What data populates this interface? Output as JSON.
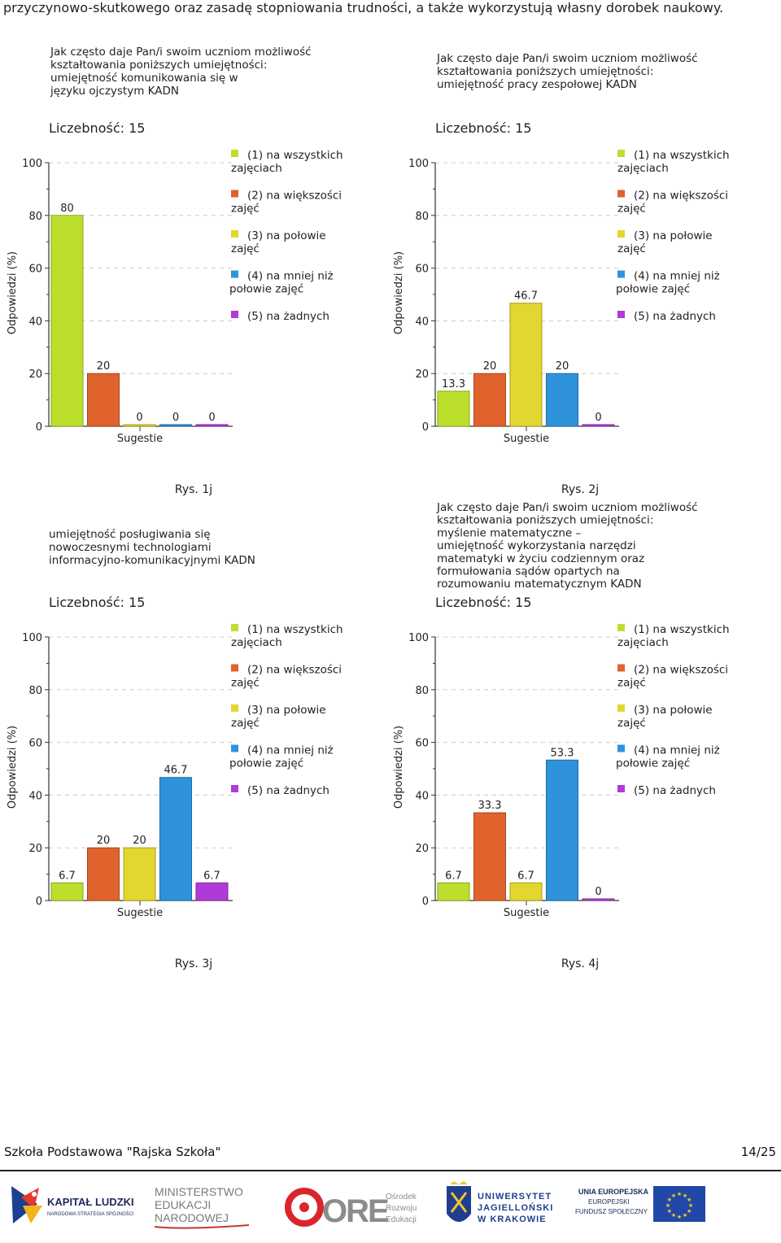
{
  "page": {
    "top_text": "przyczynowo-skutkowego oraz zasadę stopniowania trudności, a także wykorzystują własny dorobek naukowy.",
    "footer_left": "Szkoła Podstawowa \"Rajska Szkoła\"",
    "footer_right": "14/25"
  },
  "legend": {
    "items": [
      {
        "lines": [
          "(1) na wszystkich",
          "zajęciach"
        ],
        "color": "#bcdf2e"
      },
      {
        "lines": [
          "(2) na większości",
          "zajęć"
        ],
        "color": "#e0622c"
      },
      {
        "lines": [
          "(3) na połowie",
          "zajęć"
        ],
        "color": "#e2d630"
      },
      {
        "lines": [
          "(4) na mniej niż",
          "połowie zajęć"
        ],
        "color": "#2f93db"
      },
      {
        "lines": [
          "(5) na żadnych"
        ],
        "color": "#b03ad8"
      }
    ]
  },
  "colors": {
    "bar_colors": [
      "#bcdf2e",
      "#e0622c",
      "#e2d630",
      "#2f93db",
      "#b03ad8"
    ],
    "bar_stroke": [
      "#8aa61c",
      "#a8441a",
      "#a89e18",
      "#1d6aa3",
      "#7d2a9c"
    ],
    "grid": "#cccccc",
    "axis": "#333333",
    "text": "#222222"
  },
  "logos": {
    "kapital": [
      "KAPITAŁ LUDZKI",
      "NARODOWA STRATEGIA SPÓJNOŚCI"
    ],
    "ministerstwo": [
      "MINISTERSTWO",
      "EDUKACJI",
      "NARODOWEJ"
    ],
    "ore_mark": "ORE",
    "ore_text": [
      "Ośrodek",
      "Rozwoju",
      "Edukacji"
    ],
    "uj": [
      "UNIWERSYTET",
      "JAGIELLOŃSKI",
      "W KRAKOWIE"
    ],
    "ue": [
      "UNIA EUROPEJSKA",
      "EUROPEJSKI",
      "FUNDUSZ SPOŁECZNY"
    ]
  },
  "chart_data": [
    {
      "type": "bar",
      "title_lines": [
        "Jak często daje Pan/i swoim uczniom możliwość",
        "kształtowania poniższych umiejętności:",
        "umiejętność komunikowania się w",
        "języku ojczystym KADN"
      ],
      "count_label": "Liczebność: 15",
      "ylabel": "Odpowiedzi (%)",
      "xlabel": "Sugestie",
      "ylim": [
        0,
        100
      ],
      "yticks": [
        0,
        20,
        40,
        60,
        80,
        100
      ],
      "categories": [
        "(1) na wszystkich zajęciach",
        "(2) na większości zajęć",
        "(3) na połowie zajęć",
        "(4) na mniej niż połowie zajęć",
        "(5) na żadnych"
      ],
      "values": [
        80,
        20,
        0,
        0,
        0
      ],
      "value_labels": [
        "80",
        "20",
        "0",
        "0",
        "0"
      ],
      "caption": "Rys. 1j"
    },
    {
      "type": "bar",
      "title_lines": [
        "Jak często daje Pan/i swoim uczniom możliwość",
        "kształtowania poniższych umiejętności:",
        "umiejętność pracy zespołowej KADN"
      ],
      "count_label": "Liczebność: 15",
      "ylabel": "Odpowiedzi (%)",
      "xlabel": "Sugestie",
      "ylim": [
        0,
        100
      ],
      "yticks": [
        0,
        20,
        40,
        60,
        80,
        100
      ],
      "categories": [
        "(1) na wszystkich zajęciach",
        "(2) na większości zajęć",
        "(3) na połowie zajęć",
        "(4) na mniej niż połowie zajęć",
        "(5) na żadnych"
      ],
      "values": [
        13.3,
        20,
        46.7,
        20,
        0
      ],
      "value_labels": [
        "13.3",
        "20",
        "46.7",
        "20",
        "0"
      ],
      "caption": "Rys. 2j"
    },
    {
      "type": "bar",
      "title_lines": [
        "umiejętność posługiwania się",
        "nowoczesnymi technologiami",
        "informacyjno-komunikacyjnymi KADN"
      ],
      "count_label": "Liczebność: 15",
      "ylabel": "Odpowiedzi (%)",
      "xlabel": "Sugestie",
      "ylim": [
        0,
        100
      ],
      "yticks": [
        0,
        20,
        40,
        60,
        80,
        100
      ],
      "categories": [
        "(1) na wszystkich zajęciach",
        "(2) na większości zajęć",
        "(3) na połowie zajęć",
        "(4) na mniej niż połowie zajęć",
        "(5) na żadnych"
      ],
      "values": [
        6.7,
        20,
        20,
        46.7,
        6.7
      ],
      "value_labels": [
        "6.7",
        "20",
        "20",
        "46.7",
        "6.7"
      ],
      "caption": "Rys. 3j"
    },
    {
      "type": "bar",
      "title_lines": [
        "Jak często daje Pan/i swoim uczniom możliwość",
        "kształtowania poniższych umiejętności:",
        "myślenie matematyczne –",
        "umiejętność wykorzystania narzędzi",
        "matematyki w życiu codziennym oraz",
        "formułowania sądów opartych na",
        "rozumowaniu matematycznym KADN"
      ],
      "count_label": "Liczebność: 15",
      "ylabel": "Odpowiedzi (%)",
      "xlabel": "Sugestie",
      "ylim": [
        0,
        100
      ],
      "yticks": [
        0,
        20,
        40,
        60,
        80,
        100
      ],
      "categories": [
        "(1) na wszystkich zajęciach",
        "(2) na większości zajęć",
        "(3) na połowie zajęć",
        "(4) na mniej niż połowie zajęć",
        "(5) na żadnych"
      ],
      "values": [
        6.7,
        33.3,
        6.7,
        53.3,
        0
      ],
      "value_labels": [
        "6.7",
        "33.3",
        "6.7",
        "53.3",
        "0"
      ],
      "caption": "Rys. 4j"
    }
  ]
}
